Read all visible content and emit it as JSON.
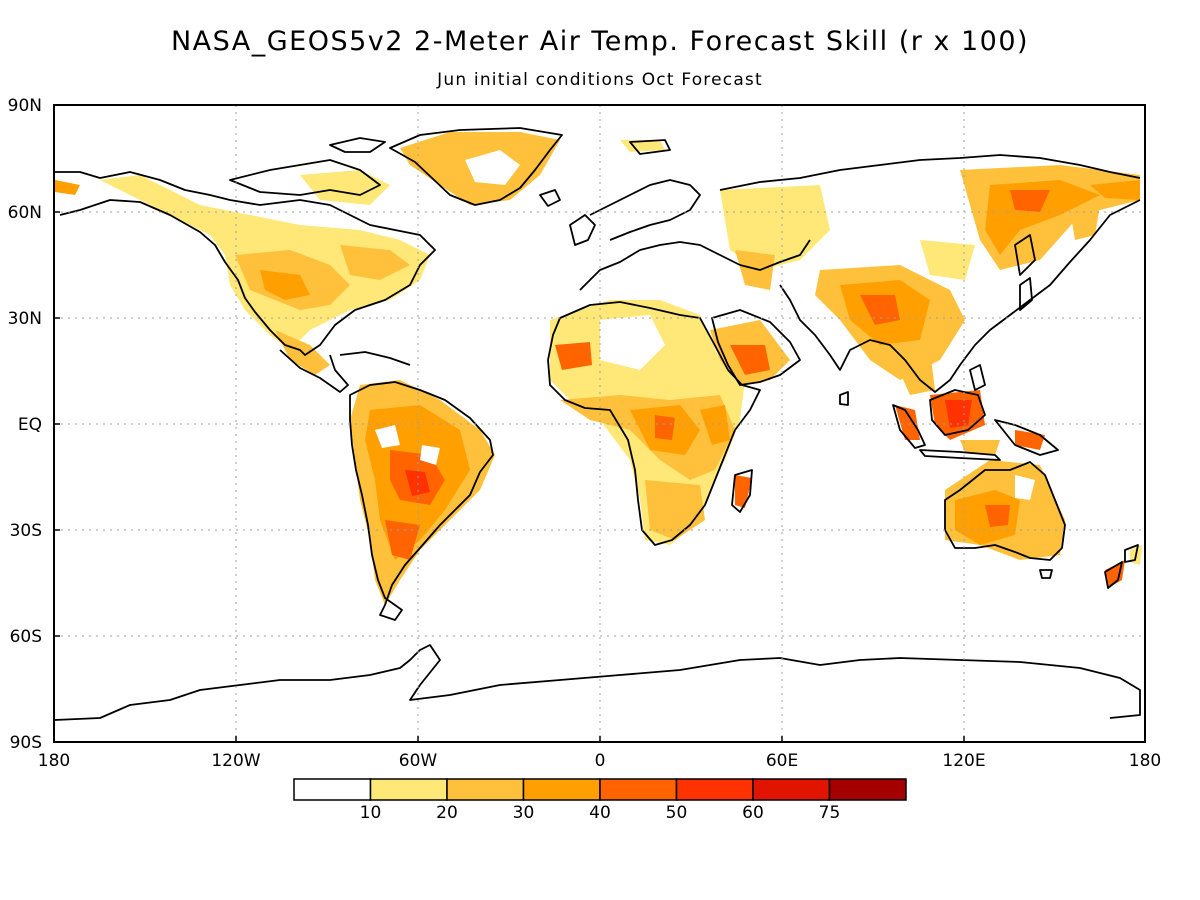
{
  "header": {
    "title": "NASA_GEOS5v2 2-Meter Air Temp. Forecast Skill (r x 100)",
    "subtitle": "Jun initial conditions  Oct Forecast"
  },
  "axes": {
    "lat_labels": [
      "90N",
      "60N",
      "30N",
      "EQ",
      "30S",
      "60S",
      "90S"
    ],
    "lon_labels": [
      "180",
      "120W",
      "60W",
      "0",
      "60E",
      "120E",
      "180"
    ]
  },
  "colorbar": {
    "labels": [
      "10",
      "20",
      "30",
      "40",
      "50",
      "60",
      "75"
    ],
    "colors": [
      "#ffffff",
      "#ffe878",
      "#ffc03c",
      "#ffa000",
      "#ff6400",
      "#ff3200",
      "#e11400",
      "#a50000"
    ]
  }
}
